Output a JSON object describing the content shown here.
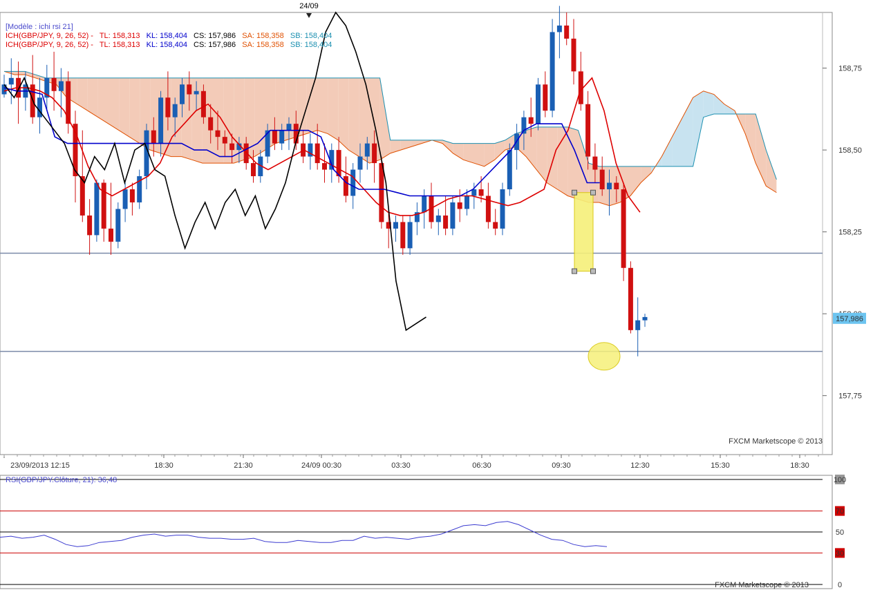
{
  "header": {
    "date_marker": "24/09",
    "template_label": "[Modèle : ichi rsi 21]",
    "indicator_line1": {
      "name": "ICH(GBP/JPY, 9, 26, 52) -",
      "tl": "TL: 158,313",
      "kl": "KL: 158,404",
      "cs": "CS: 157,986",
      "sa": "SA: 158,358",
      "sb": "SB: 158,404"
    },
    "indicator_line2": {
      "name": "ICH(GBP/JPY, 9, 26, 52) -",
      "tl": "TL: 158,313",
      "kl": "KL: 158,404",
      "cs": "CS: 157,986",
      "sa": "SA: 158,358",
      "sb": "SB: 158,404"
    },
    "watermark": "FXCM Marketscope © 2013"
  },
  "colors": {
    "tenkan": "#dd0000",
    "kijun": "#0000cc",
    "chikou": "#000000",
    "senkou_a": "#e05000",
    "senkou_b": "#1a8fb0",
    "cloud_bear": "#f3cbb8",
    "cloud_bull": "#c8e3f0",
    "bull_candle": "#1a5fb4",
    "bear_candle": "#d01010",
    "rsi_line": "#3b3bd0",
    "level_line": "#7a89a8",
    "highlight": "#f6f07a",
    "price_tag": "#6cc4f0"
  },
  "chart_data": [
    {
      "type": "candlestick",
      "title": "",
      "instrument": "GBP/JPY",
      "x_tick_labels": [
        "23/09/2013 12:15",
        "18:30",
        "21:30",
        "24/09 00:30",
        "03:30",
        "06:30",
        "09:30",
        "12:30",
        "15:30",
        "18:30"
      ],
      "y_tick_labels": [
        "158,75",
        "158,50",
        "158,25",
        "158,00",
        "157,75"
      ],
      "y_ticks": [
        158.75,
        158.5,
        158.25,
        158.0,
        157.75
      ],
      "ylim": [
        157.57,
        158.92
      ],
      "current_price_label": "157,986",
      "current_price": 157.986,
      "horizontal_levels": [
        158.185,
        157.885
      ],
      "candles_ohlc": [
        [
          158.67,
          158.73,
          158.66,
          158.7
        ],
        [
          158.7,
          158.78,
          158.64,
          158.72
        ],
        [
          158.72,
          158.77,
          158.58,
          158.66
        ],
        [
          158.66,
          158.74,
          158.62,
          158.7
        ],
        [
          158.7,
          158.79,
          158.58,
          158.6
        ],
        [
          158.6,
          158.72,
          158.55,
          158.66
        ],
        [
          158.66,
          158.76,
          158.62,
          158.72
        ],
        [
          158.72,
          158.8,
          158.62,
          158.68
        ],
        [
          158.68,
          158.75,
          158.6,
          158.71
        ],
        [
          158.71,
          158.74,
          158.55,
          158.58
        ],
        [
          158.58,
          158.62,
          158.34,
          158.42
        ],
        [
          158.42,
          158.56,
          158.28,
          158.3
        ],
        [
          158.3,
          158.35,
          158.18,
          158.24
        ],
        [
          158.24,
          158.41,
          158.22,
          158.4
        ],
        [
          158.4,
          158.41,
          158.22,
          158.26
        ],
        [
          158.26,
          158.4,
          158.18,
          158.22
        ],
        [
          158.22,
          158.34,
          158.2,
          158.32
        ],
        [
          158.32,
          158.4,
          158.28,
          158.38
        ],
        [
          158.38,
          158.4,
          158.3,
          158.34
        ],
        [
          158.34,
          158.44,
          158.32,
          158.42
        ],
        [
          158.42,
          158.58,
          158.38,
          158.56
        ],
        [
          158.56,
          158.6,
          158.48,
          158.52
        ],
        [
          158.52,
          158.68,
          158.48,
          158.66
        ],
        [
          158.66,
          158.74,
          158.56,
          158.6
        ],
        [
          158.6,
          158.66,
          158.54,
          158.64
        ],
        [
          158.64,
          158.72,
          158.6,
          158.7
        ],
        [
          158.7,
          158.74,
          158.62,
          158.67
        ],
        [
          158.67,
          158.71,
          158.62,
          158.68
        ],
        [
          158.68,
          158.7,
          158.58,
          158.6
        ],
        [
          158.6,
          158.64,
          158.52,
          158.56
        ],
        [
          158.56,
          158.62,
          158.5,
          158.54
        ],
        [
          158.54,
          158.56,
          158.48,
          158.52
        ],
        [
          158.52,
          158.55,
          158.46,
          158.5
        ],
        [
          158.5,
          158.54,
          158.46,
          158.52
        ],
        [
          158.52,
          158.54,
          158.44,
          158.46
        ],
        [
          158.46,
          158.5,
          158.4,
          158.42
        ],
        [
          158.42,
          158.5,
          158.4,
          158.48
        ],
        [
          158.48,
          158.58,
          158.46,
          158.56
        ],
        [
          158.56,
          158.6,
          158.5,
          158.52
        ],
        [
          158.52,
          158.58,
          158.5,
          158.56
        ],
        [
          158.56,
          158.6,
          158.5,
          158.58
        ],
        [
          158.58,
          158.62,
          158.5,
          158.52
        ],
        [
          158.52,
          158.56,
          158.46,
          158.48
        ],
        [
          158.48,
          158.55,
          158.44,
          158.52
        ],
        [
          158.52,
          158.58,
          158.44,
          158.46
        ],
        [
          158.46,
          158.52,
          158.4,
          158.44
        ],
        [
          158.44,
          158.52,
          158.4,
          158.5
        ],
        [
          158.5,
          158.54,
          158.4,
          158.42
        ],
        [
          158.42,
          158.48,
          158.34,
          158.36
        ],
        [
          158.36,
          158.46,
          158.32,
          158.44
        ],
        [
          158.44,
          158.52,
          158.4,
          158.48
        ],
        [
          158.48,
          158.54,
          158.44,
          158.52
        ],
        [
          158.52,
          158.56,
          158.4,
          158.46
        ],
        [
          158.46,
          158.48,
          158.26,
          158.28
        ],
        [
          158.28,
          158.32,
          158.2,
          158.26
        ],
        [
          158.26,
          158.3,
          158.22,
          158.28
        ],
        [
          158.28,
          158.3,
          158.18,
          158.2
        ],
        [
          158.2,
          158.3,
          158.18,
          158.28
        ],
        [
          158.28,
          158.34,
          158.24,
          158.31
        ],
        [
          158.31,
          158.38,
          158.26,
          158.36
        ],
        [
          158.36,
          158.4,
          158.26,
          158.28
        ],
        [
          158.28,
          158.32,
          158.24,
          158.3
        ],
        [
          158.3,
          158.36,
          158.24,
          158.26
        ],
        [
          158.26,
          158.36,
          158.24,
          158.34
        ],
        [
          158.34,
          158.38,
          158.28,
          158.32
        ],
        [
          158.32,
          158.38,
          158.3,
          158.36
        ],
        [
          158.36,
          158.4,
          158.32,
          158.38
        ],
        [
          158.38,
          158.42,
          158.34,
          158.36
        ],
        [
          158.36,
          158.4,
          158.26,
          158.28
        ],
        [
          158.28,
          158.32,
          158.24,
          158.26
        ],
        [
          158.26,
          158.4,
          158.24,
          158.38
        ],
        [
          158.38,
          158.52,
          158.36,
          158.5
        ],
        [
          158.5,
          158.58,
          158.44,
          158.55
        ],
        [
          158.55,
          158.62,
          158.5,
          158.6
        ],
        [
          158.6,
          158.66,
          158.54,
          158.58
        ],
        [
          158.58,
          158.72,
          158.56,
          158.7
        ],
        [
          158.7,
          158.74,
          158.6,
          158.62
        ],
        [
          158.62,
          158.9,
          158.6,
          158.86
        ],
        [
          158.86,
          158.94,
          158.78,
          158.88
        ],
        [
          158.88,
          158.92,
          158.82,
          158.84
        ],
        [
          158.84,
          158.9,
          158.7,
          158.74
        ],
        [
          158.74,
          158.8,
          158.62,
          158.64
        ],
        [
          158.64,
          158.68,
          158.44,
          158.48
        ],
        [
          158.48,
          158.52,
          158.4,
          158.44
        ],
        [
          158.44,
          158.48,
          158.36,
          158.38
        ],
        [
          158.38,
          158.44,
          158.3,
          158.4
        ],
        [
          158.4,
          158.42,
          158.34,
          158.38
        ],
        [
          158.38,
          158.4,
          158.1,
          158.14
        ],
        [
          158.14,
          158.16,
          157.94,
          157.95
        ],
        [
          157.95,
          158.05,
          157.87,
          157.98
        ],
        [
          157.98,
          158.0,
          157.96,
          157.99
        ]
      ],
      "tenkan": [
        158.68,
        158.69,
        158.69,
        158.68,
        158.66,
        158.62,
        158.55,
        158.45,
        158.38,
        158.36,
        158.38,
        158.4,
        158.42,
        158.46,
        158.54,
        158.58,
        158.62,
        158.64,
        158.6,
        158.54,
        158.5,
        158.46,
        158.44,
        158.46,
        158.48,
        158.5,
        158.48,
        158.46,
        158.44,
        158.42,
        158.38,
        158.34,
        158.31,
        158.3,
        158.3,
        158.31,
        158.33,
        158.35,
        158.36,
        158.36,
        158.35,
        158.34,
        158.33,
        158.34,
        158.36,
        158.38,
        158.5,
        158.56,
        158.68,
        158.72,
        158.62,
        158.46,
        158.36,
        158.31
      ],
      "kijun": [
        158.69,
        158.68,
        158.68,
        158.67,
        158.54,
        158.52,
        158.52,
        158.52,
        158.52,
        158.52,
        158.52,
        158.52,
        158.52,
        158.52,
        158.52,
        158.5,
        158.5,
        158.48,
        158.48,
        158.5,
        158.52,
        158.56,
        158.56,
        158.56,
        158.56,
        158.54,
        158.44,
        158.4,
        158.38,
        158.38,
        158.38,
        158.37,
        158.36,
        158.36,
        158.36,
        158.36,
        158.36,
        158.38,
        158.42,
        158.46,
        158.5,
        158.56,
        158.58,
        158.58,
        158.58,
        158.5,
        158.4,
        158.4
      ],
      "chikou": [
        158.7,
        158.66,
        158.72,
        158.64,
        158.6,
        158.56,
        158.52,
        158.44,
        158.4,
        158.48,
        158.44,
        158.52,
        158.4,
        158.5,
        158.52,
        158.44,
        158.42,
        158.3,
        158.2,
        158.28,
        158.34,
        158.26,
        158.34,
        158.38,
        158.3,
        158.36,
        158.26,
        158.32,
        158.4,
        158.52,
        158.62,
        158.72,
        158.86,
        158.92,
        158.88,
        158.8,
        158.7,
        158.56,
        158.4,
        158.1,
        157.95,
        157.97,
        157.99
      ]
    },
    {
      "type": "line",
      "title": "RSI(GBP/JPY.Clôture, 21): 36,48",
      "series": [
        {
          "name": "RSI(GBP/JPY.Clôture, 21)",
          "values": [
            45,
            46,
            44,
            45,
            47,
            43,
            38,
            36,
            37,
            40,
            41,
            42,
            45,
            47,
            48,
            46,
            47,
            47,
            45,
            44,
            44,
            43,
            43,
            44,
            41,
            40,
            40,
            42,
            41,
            40,
            40,
            42,
            42,
            46,
            44,
            45,
            44,
            43,
            45,
            46,
            48,
            52,
            56,
            57,
            56,
            59,
            60,
            57,
            52,
            47,
            43,
            42,
            38,
            36,
            37,
            36
          ]
        }
      ],
      "ylim": [
        0,
        100
      ],
      "y_tick_labels": [
        "100",
        "70",
        "50",
        "30",
        "0"
      ],
      "y_ticks": [
        100,
        70,
        50,
        30,
        0
      ],
      "last_value": 36.48
    }
  ]
}
